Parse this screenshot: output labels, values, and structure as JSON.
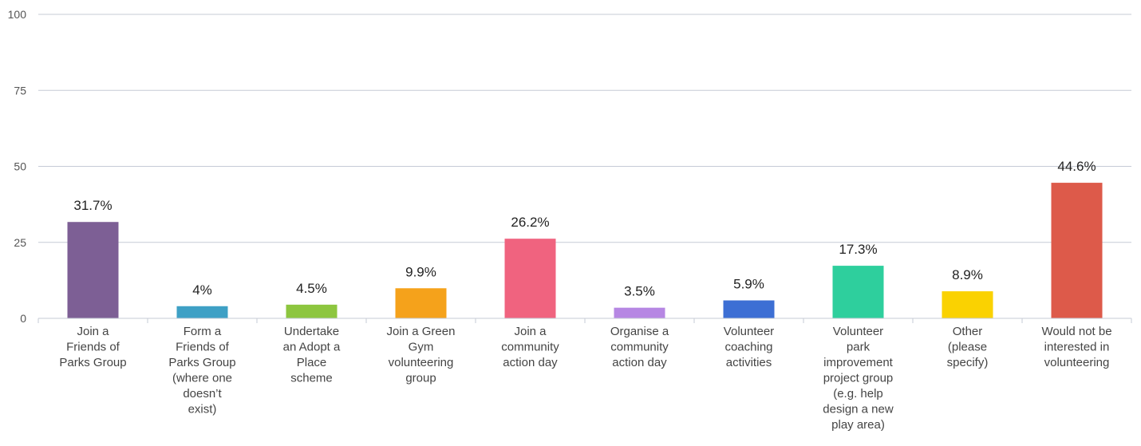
{
  "chart_data": {
    "type": "bar",
    "ylim": [
      0,
      100
    ],
    "yticks": [
      0,
      25,
      50,
      75,
      100
    ],
    "grid": true,
    "legend": "none",
    "categories": [
      [
        "Join a",
        "Friends of",
        "Parks Group"
      ],
      [
        "Form a",
        "Friends of",
        "Parks Group",
        "(where one",
        "doesn’t",
        "exist)"
      ],
      [
        "Undertake",
        "an Adopt a",
        "Place",
        "scheme"
      ],
      [
        "Join a Green",
        "Gym",
        "volunteering",
        "group"
      ],
      [
        "Join a",
        "community",
        "action day"
      ],
      [
        "Organise a",
        "community",
        "action day"
      ],
      [
        "Volunteer",
        "coaching",
        "activities"
      ],
      [
        "Volunteer",
        "park",
        "improvement",
        "project group",
        "(e.g. help",
        "design a new",
        "play area)"
      ],
      [
        "Other",
        "(please",
        "specify)"
      ],
      [
        "Would not be",
        "interested in",
        "volunteering"
      ]
    ],
    "values": [
      31.7,
      4,
      4.5,
      9.9,
      26.2,
      3.5,
      5.9,
      17.3,
      8.9,
      44.6
    ],
    "data_labels": [
      "31.7%",
      "4%",
      "4.5%",
      "9.9%",
      "26.2%",
      "3.5%",
      "5.9%",
      "17.3%",
      "8.9%",
      "44.6%"
    ],
    "colors": [
      "#7d5f95",
      "#3ea0c5",
      "#8dc63f",
      "#f5a21b",
      "#f0637f",
      "#b687e3",
      "#3d6fd4",
      "#2ecf9d",
      "#fad201",
      "#dd5a4a"
    ],
    "grid_color": "#c5cbd6",
    "axis_color": "#c5cbd6"
  }
}
